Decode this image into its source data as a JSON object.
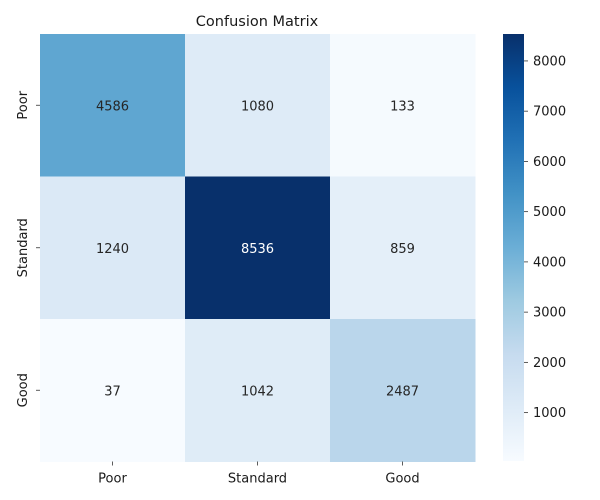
{
  "chart_data": {
    "type": "heatmap",
    "title": "Confusion Matrix",
    "row_labels": [
      "Poor",
      "Standard",
      "Good"
    ],
    "col_labels": [
      "Poor",
      "Standard",
      "Good"
    ],
    "values": [
      [
        4586,
        1080,
        133
      ],
      [
        1240,
        8536,
        859
      ],
      [
        37,
        1042,
        2487
      ]
    ],
    "colormap": "Blues",
    "colorbar": {
      "range": [
        37,
        8536
      ],
      "ticks": [
        1000,
        2000,
        3000,
        4000,
        5000,
        6000,
        7000,
        8000
      ],
      "tick_labels": [
        "1000",
        "2000",
        "3000",
        "4000",
        "5000",
        "6000",
        "7000",
        "8000"
      ]
    },
    "grid": false
  },
  "colors": {
    "scale": [
      "#f7fbff",
      "#deebf7",
      "#c6dbef",
      "#9ecae1",
      "#6baed6",
      "#4292c6",
      "#2171b5",
      "#08519c",
      "#08306b"
    ],
    "text_dark": "#262626",
    "text_light": "#ffffff"
  }
}
